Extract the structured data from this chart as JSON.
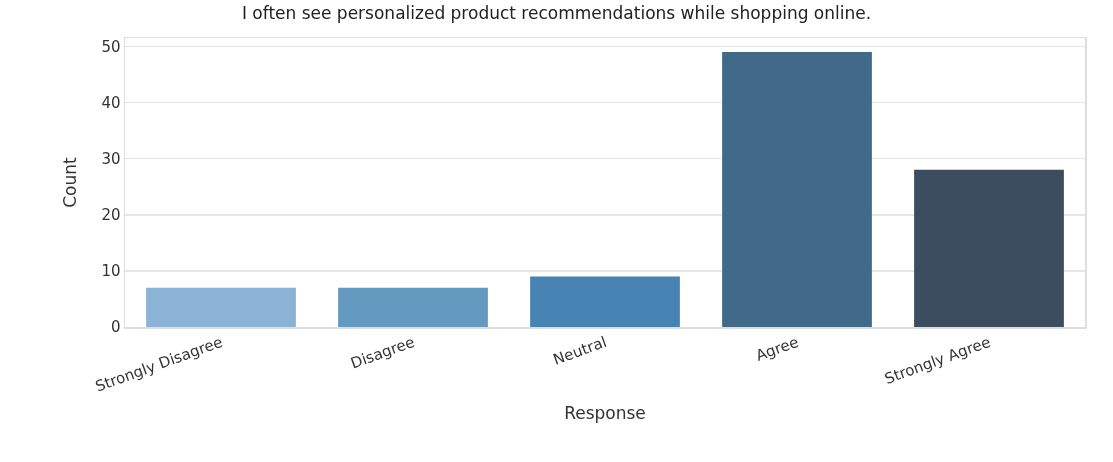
{
  "chart_data": {
    "type": "bar",
    "title": "I often see personalized product recommendations while shopping online.",
    "xlabel": "Response",
    "ylabel": "Count",
    "categories": [
      "Strongly Disagree",
      "Disagree",
      "Neutral",
      "Agree",
      "Strongly Agree"
    ],
    "values": [
      7,
      7,
      9,
      49,
      28
    ],
    "colors": [
      "#8ab3d5",
      "#6499c0",
      "#4784b3",
      "#41698a",
      "#3b4d5f"
    ],
    "ylim": [
      0,
      51.5
    ],
    "yticks": [
      0,
      10,
      20,
      30,
      40,
      50
    ],
    "grid": "y"
  }
}
